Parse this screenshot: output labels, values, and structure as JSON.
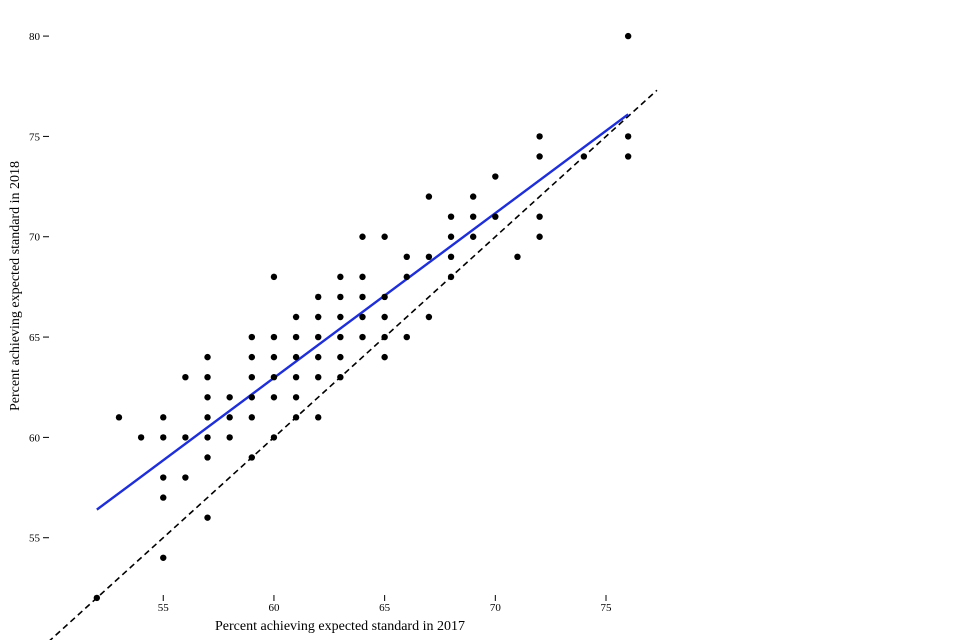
{
  "chart_data": {
    "type": "scatter",
    "title": "",
    "xlabel": "Percent achieving expected standard in 2017",
    "ylabel": "Percent achieving expected standard in 2018",
    "xlim": [
      48.8,
      77.8
    ],
    "ylim": [
      50.8,
      81.3
    ],
    "xticks": [
      55,
      60,
      65,
      70,
      75
    ],
    "yticks": [
      55,
      60,
      65,
      70,
      75,
      80
    ],
    "grid": false,
    "legend": "none",
    "points": [
      [
        52,
        52
      ],
      [
        53,
        61
      ],
      [
        54,
        60
      ],
      [
        55,
        61
      ],
      [
        55,
        60
      ],
      [
        55,
        58
      ],
      [
        55,
        57
      ],
      [
        55,
        54
      ],
      [
        56,
        63
      ],
      [
        56,
        60
      ],
      [
        56,
        58
      ],
      [
        57,
        64
      ],
      [
        57,
        63
      ],
      [
        57,
        62
      ],
      [
        57,
        61
      ],
      [
        57,
        60
      ],
      [
        57,
        59
      ],
      [
        57,
        56
      ],
      [
        58,
        62
      ],
      [
        58,
        61
      ],
      [
        58,
        60
      ],
      [
        59,
        65
      ],
      [
        59,
        64
      ],
      [
        59,
        63
      ],
      [
        59,
        62
      ],
      [
        59,
        61
      ],
      [
        59,
        59
      ],
      [
        60,
        68
      ],
      [
        60,
        65
      ],
      [
        60,
        64
      ],
      [
        60,
        63
      ],
      [
        60,
        62
      ],
      [
        60,
        60
      ],
      [
        61,
        66
      ],
      [
        61,
        65
      ],
      [
        61,
        64
      ],
      [
        61,
        63
      ],
      [
        61,
        62
      ],
      [
        61,
        61
      ],
      [
        62,
        67
      ],
      [
        62,
        66
      ],
      [
        62,
        65
      ],
      [
        62,
        64
      ],
      [
        62,
        63
      ],
      [
        62,
        61
      ],
      [
        63,
        68
      ],
      [
        63,
        67
      ],
      [
        63,
        66
      ],
      [
        63,
        65
      ],
      [
        63,
        64
      ],
      [
        63,
        63
      ],
      [
        64,
        70
      ],
      [
        64,
        68
      ],
      [
        64,
        67
      ],
      [
        64,
        66
      ],
      [
        64,
        65
      ],
      [
        65,
        70
      ],
      [
        65,
        67
      ],
      [
        65,
        66
      ],
      [
        65,
        65
      ],
      [
        65,
        64
      ],
      [
        66,
        69
      ],
      [
        66,
        68
      ],
      [
        66,
        65
      ],
      [
        67,
        72
      ],
      [
        67,
        69
      ],
      [
        67,
        66
      ],
      [
        68,
        71
      ],
      [
        68,
        70
      ],
      [
        68,
        69
      ],
      [
        68,
        68
      ],
      [
        69,
        72
      ],
      [
        69,
        71
      ],
      [
        69,
        70
      ],
      [
        70,
        73
      ],
      [
        70,
        71
      ],
      [
        71,
        69
      ],
      [
        72,
        75
      ],
      [
        72,
        74
      ],
      [
        72,
        71
      ],
      [
        72,
        70
      ],
      [
        74,
        74
      ],
      [
        76,
        80
      ],
      [
        76,
        75
      ],
      [
        76,
        74
      ]
    ],
    "fit_line": {
      "x": [
        52,
        76
      ],
      "y": [
        56.4,
        76.1
      ],
      "color": "#1f2fd6"
    },
    "reference_line": {
      "label": "y = x",
      "x": [
        48.8,
        77.3
      ],
      "y": [
        48.8,
        77.3
      ],
      "style": "dashed",
      "color": "#000000"
    },
    "point_color": "#000000"
  }
}
